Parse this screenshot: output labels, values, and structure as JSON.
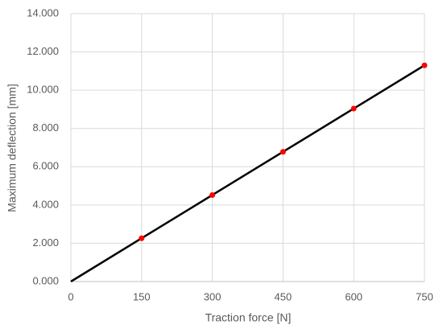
{
  "chart_data": {
    "type": "scatter",
    "x_label": "Traction force [N]",
    "y_label": "Maximum deflection [mm]",
    "series": [
      {
        "style": "line",
        "color": "#000000",
        "x": [
          0,
          150,
          300,
          450,
          600,
          750
        ],
        "values": [
          0,
          2.26,
          4.52,
          6.78,
          9.04,
          11.3
        ]
      },
      {
        "style": "markers",
        "color": "#ff0000",
        "x": [
          150,
          300,
          450,
          600,
          750
        ],
        "values": [
          2.26,
          4.52,
          6.78,
          9.04,
          11.3
        ]
      }
    ],
    "xlim": [
      0,
      750
    ],
    "xticks": [
      0,
      150,
      300,
      450,
      600,
      750
    ],
    "ylim": [
      0,
      14
    ],
    "yticks": [
      {
        "value": 0,
        "label": "0.000"
      },
      {
        "value": 2,
        "label": "2.000"
      },
      {
        "value": 4,
        "label": "4.000"
      },
      {
        "value": 6,
        "label": "6.000"
      },
      {
        "value": 8,
        "label": "8.000"
      },
      {
        "value": 10,
        "label": "10.000"
      },
      {
        "value": 12,
        "label": "12.000"
      },
      {
        "value": 14,
        "label": "14.000"
      }
    ],
    "grid": true
  }
}
